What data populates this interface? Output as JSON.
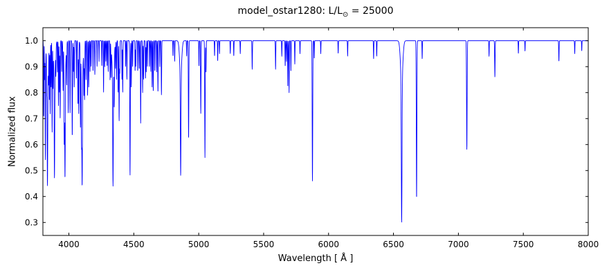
{
  "figure": {
    "title_prefix": "model_ostar1280: L/L",
    "title_sub": "⊙",
    "title_suffix": " = 25000"
  },
  "chart_data": {
    "type": "line",
    "title": "model_ostar1280: L/L⊙ = 25000",
    "xlabel": "Wavelength [ Å ]",
    "ylabel": "Normalized flux",
    "xlim": [
      3800,
      8000
    ],
    "ylim": [
      0.25,
      1.05
    ],
    "xticks": [
      4000,
      4500,
      5000,
      5500,
      6000,
      6500,
      7000,
      7500,
      8000
    ],
    "x_tick_labels": [
      "4000",
      "4500",
      "5000",
      "5500",
      "6000",
      "6500",
      "7000",
      "7500",
      "8000"
    ],
    "yticks": [
      0.3,
      0.4,
      0.5,
      0.6,
      0.7,
      0.8,
      0.9,
      1.0
    ],
    "y_tick_labels": [
      "0.3",
      "0.4",
      "0.5",
      "0.6",
      "0.7",
      "0.8",
      "0.9",
      "1.0"
    ],
    "grid": false,
    "legend": null,
    "line_color": "#0000ff",
    "frame_color": "#000000",
    "background": "#ffffff",
    "continuum": 1.0,
    "absorption_lines_format": [
      "wavelength_angstrom",
      "depth_below_continuum",
      "gaussian_sigma_angstrom"
    ],
    "absorption_lines": [
      [
        3806,
        0.3,
        1.5
      ],
      [
        3813,
        0.15,
        1.3
      ],
      [
        3819,
        0.45,
        1.8
      ],
      [
        3829,
        0.1,
        1.3
      ],
      [
        3835,
        0.42,
        2.2
      ],
      [
        3835,
        0.14,
        7
      ],
      [
        3843,
        0.1,
        1.3
      ],
      [
        3850,
        0.22,
        1.4
      ],
      [
        3856,
        0.28,
        1.4
      ],
      [
        3863,
        0.18,
        1.3
      ],
      [
        3871,
        0.35,
        1.5
      ],
      [
        3878,
        0.15,
        1.3
      ],
      [
        3889,
        0.4,
        2.2
      ],
      [
        3889,
        0.13,
        7
      ],
      [
        3900,
        0.1,
        1.3
      ],
      [
        3912,
        0.12,
        1.3
      ],
      [
        3920,
        0.25,
        1.4
      ],
      [
        3927,
        0.2,
        1.4
      ],
      [
        3933,
        0.3,
        1.5
      ],
      [
        3945,
        0.12,
        1.3
      ],
      [
        3955,
        0.18,
        1.4
      ],
      [
        3964,
        0.3,
        1.6
      ],
      [
        3970,
        0.4,
        2.2
      ],
      [
        3970,
        0.13,
        7
      ],
      [
        3983,
        0.15,
        1.3
      ],
      [
        3995,
        0.28,
        1.5
      ],
      [
        4009,
        0.28,
        1.6
      ],
      [
        4026,
        0.37,
        1.9
      ],
      [
        4035,
        0.12,
        1.3
      ],
      [
        4041,
        0.18,
        1.4
      ],
      [
        4058,
        0.15,
        1.4
      ],
      [
        4070,
        0.25,
        1.5
      ],
      [
        4076,
        0.28,
        1.5
      ],
      [
        4089,
        0.3,
        1.5
      ],
      [
        4097,
        0.25,
        1.5
      ],
      [
        4102,
        0.42,
        2.3
      ],
      [
        4102,
        0.14,
        8
      ],
      [
        4116,
        0.18,
        1.4
      ],
      [
        4121,
        0.22,
        1.5
      ],
      [
        4132,
        0.15,
        1.4
      ],
      [
        4144,
        0.21,
        1.6
      ],
      [
        4153,
        0.18,
        1.4
      ],
      [
        4163,
        0.12,
        1.3
      ],
      [
        4171,
        0.1,
        1.3
      ],
      [
        4186,
        0.12,
        1.3
      ],
      [
        4200,
        0.13,
        1.6
      ],
      [
        4217,
        0.1,
        1.3
      ],
      [
        4232,
        0.08,
        1.3
      ],
      [
        4254,
        0.1,
        1.3
      ],
      [
        4267,
        0.2,
        1.4
      ],
      [
        4276,
        0.1,
        1.3
      ],
      [
        4285,
        0.08,
        1.3
      ],
      [
        4294,
        0.1,
        1.3
      ],
      [
        4303,
        0.12,
        1.3
      ],
      [
        4317,
        0.15,
        1.4
      ],
      [
        4325,
        0.12,
        1.3
      ],
      [
        4340,
        0.42,
        2.3
      ],
      [
        4340,
        0.14,
        8
      ],
      [
        4349,
        0.18,
        1.4
      ],
      [
        4359,
        0.1,
        1.3
      ],
      [
        4367,
        0.15,
        1.4
      ],
      [
        4379,
        0.2,
        1.4
      ],
      [
        4387,
        0.31,
        1.8
      ],
      [
        4392,
        0.12,
        1.3
      ],
      [
        4409,
        0.15,
        1.4
      ],
      [
        4415,
        0.2,
        1.4
      ],
      [
        4437,
        0.1,
        1.3
      ],
      [
        4447,
        0.15,
        1.4
      ],
      [
        4471,
        0.52,
        2.0
      ],
      [
        4481,
        0.18,
        1.4
      ],
      [
        4491,
        0.1,
        1.3
      ],
      [
        4510,
        0.12,
        1.3
      ],
      [
        4515,
        0.1,
        1.3
      ],
      [
        4530,
        0.12,
        1.3
      ],
      [
        4542,
        0.11,
        1.6
      ],
      [
        4553,
        0.32,
        1.6
      ],
      [
        4568,
        0.2,
        1.5
      ],
      [
        4575,
        0.15,
        1.4
      ],
      [
        4590,
        0.15,
        1.4
      ],
      [
        4596,
        0.12,
        1.3
      ],
      [
        4605,
        0.1,
        1.3
      ],
      [
        4621,
        0.1,
        1.3
      ],
      [
        4631,
        0.12,
        1.3
      ],
      [
        4641,
        0.18,
        1.4
      ],
      [
        4650,
        0.2,
        1.4
      ],
      [
        4662,
        0.12,
        1.3
      ],
      [
        4676,
        0.12,
        1.3
      ],
      [
        4686,
        0.2,
        1.6
      ],
      [
        4700,
        0.1,
        1.3
      ],
      [
        4713,
        0.21,
        1.6
      ],
      [
        4802,
        0.06,
        1.3
      ],
      [
        4815,
        0.08,
        1.3
      ],
      [
        4861,
        0.39,
        2.4
      ],
      [
        4861,
        0.13,
        8
      ],
      [
        4907,
        0.06,
        1.3
      ],
      [
        4922,
        0.38,
        1.9
      ],
      [
        5002,
        0.1,
        1.4
      ],
      [
        5016,
        0.28,
        1.8
      ],
      [
        5048,
        0.45,
        1.9
      ],
      [
        5056,
        0.12,
        1.4
      ],
      [
        5122,
        0.06,
        1.3
      ],
      [
        5146,
        0.08,
        1.3
      ],
      [
        5160,
        0.05,
        1.3
      ],
      [
        5243,
        0.05,
        1.3
      ],
      [
        5270,
        0.06,
        1.3
      ],
      [
        5320,
        0.05,
        1.3
      ],
      [
        5412,
        0.11,
        1.6
      ],
      [
        5592,
        0.11,
        1.5
      ],
      [
        5640,
        0.06,
        1.3
      ],
      [
        5666,
        0.1,
        1.4
      ],
      [
        5676,
        0.08,
        1.4
      ],
      [
        5686,
        0.18,
        1.5
      ],
      [
        5696,
        0.2,
        1.5
      ],
      [
        5710,
        0.12,
        1.4
      ],
      [
        5740,
        0.09,
        1.4
      ],
      [
        5780,
        0.05,
        1.3
      ],
      [
        5876,
        0.54,
        2.1
      ],
      [
        5890,
        0.07,
        1.3
      ],
      [
        5940,
        0.05,
        1.3
      ],
      [
        6074,
        0.05,
        1.3
      ],
      [
        6147,
        0.06,
        1.3
      ],
      [
        6347,
        0.07,
        1.4
      ],
      [
        6371,
        0.06,
        1.4
      ],
      [
        6563,
        0.55,
        2.8
      ],
      [
        6563,
        0.15,
        9
      ],
      [
        6678,
        0.61,
        2.2
      ],
      [
        6721,
        0.07,
        1.4
      ],
      [
        7065,
        0.42,
        2.2
      ],
      [
        7236,
        0.06,
        1.4
      ],
      [
        7281,
        0.14,
        1.8
      ],
      [
        7462,
        0.05,
        1.4
      ],
      [
        7513,
        0.04,
        1.3
      ],
      [
        7774,
        0.08,
        1.6
      ],
      [
        7896,
        0.05,
        1.4
      ],
      [
        7950,
        0.04,
        1.3
      ]
    ]
  }
}
